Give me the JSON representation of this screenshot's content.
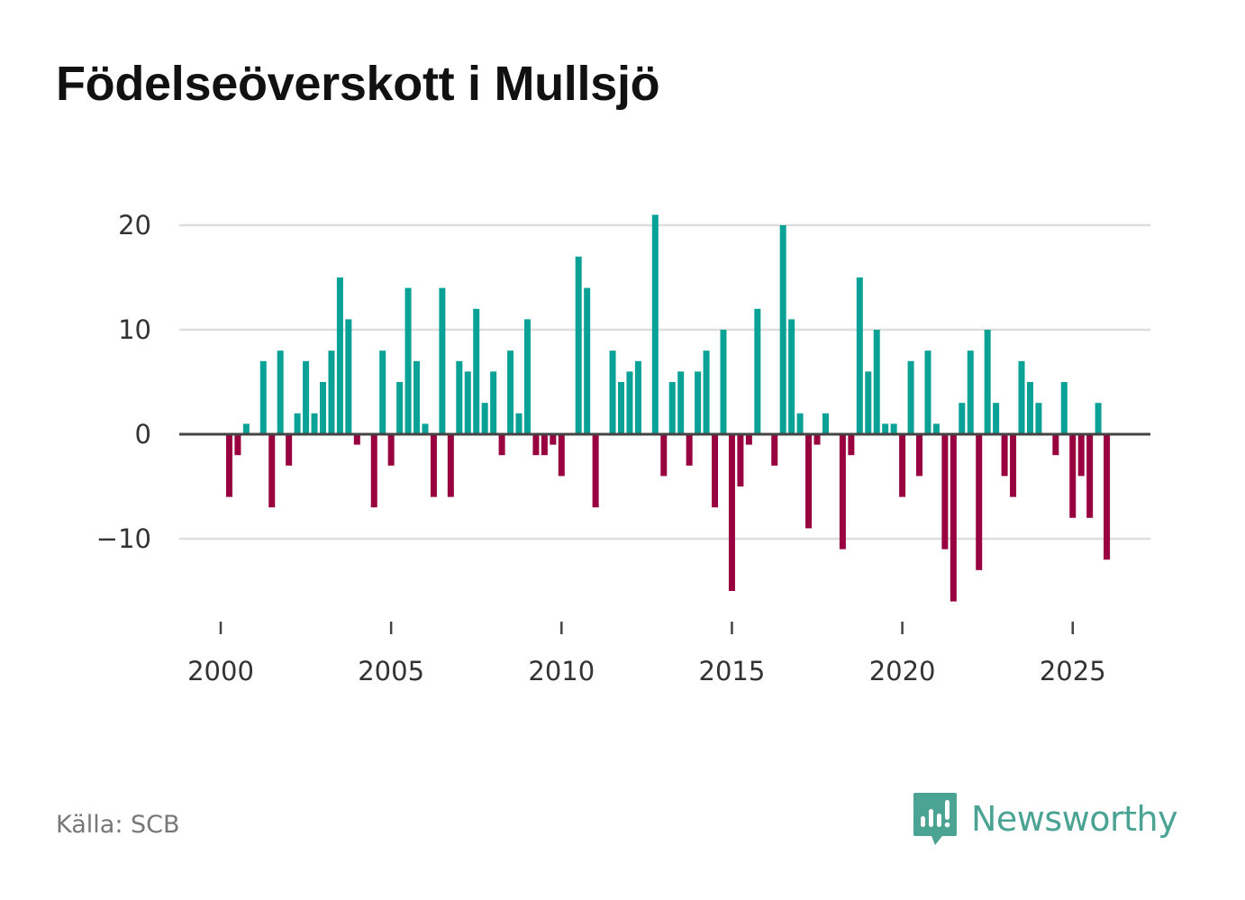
{
  "chart_data": {
    "type": "bar",
    "title": "Födelseöverskott i Mullsjö",
    "xlabel": "",
    "ylabel": "",
    "ylim": [
      -18,
      22
    ],
    "yticks": [
      20,
      10,
      0,
      -10
    ],
    "ytick_labels": [
      "20",
      "10",
      "0",
      "−10"
    ],
    "xticks": [
      2000,
      2005,
      2010,
      2015,
      2020,
      2025
    ],
    "xtick_labels": [
      "2000",
      "2005",
      "2010",
      "2015",
      "2020",
      "2025"
    ],
    "colors": {
      "positive": "#0aa197",
      "negative": "#98003f",
      "grid": "#dddddd",
      "zero": "#444444"
    },
    "x": [
      2000.25,
      2000.5,
      2000.75,
      2001.0,
      2001.25,
      2001.5,
      2001.75,
      2002.0,
      2002.25,
      2002.5,
      2002.75,
      2003.0,
      2003.25,
      2003.5,
      2003.75,
      2004.0,
      2004.25,
      2004.5,
      2004.75,
      2005.0,
      2005.25,
      2005.5,
      2005.75,
      2006.0,
      2006.25,
      2006.5,
      2006.75,
      2007.0,
      2007.25,
      2007.5,
      2007.75,
      2008.0,
      2008.25,
      2008.5,
      2008.75,
      2009.0,
      2009.25,
      2009.5,
      2009.75,
      2010.0,
      2010.25,
      2010.5,
      2010.75,
      2011.0,
      2011.25,
      2011.5,
      2011.75,
      2012.0,
      2012.25,
      2012.5,
      2012.75,
      2013.0,
      2013.25,
      2013.5,
      2013.75,
      2014.0,
      2014.25,
      2014.5,
      2014.75,
      2015.0,
      2015.25,
      2015.5,
      2015.75,
      2016.0,
      2016.25,
      2016.5,
      2016.75,
      2017.0,
      2017.25,
      2017.5,
      2017.75,
      2018.0,
      2018.25,
      2018.5,
      2018.75,
      2019.0,
      2019.25,
      2019.5,
      2019.75,
      2020.0,
      2020.25,
      2020.5,
      2020.75,
      2021.0,
      2021.25,
      2021.5,
      2021.75,
      2022.0,
      2022.25,
      2022.5,
      2022.75,
      2023.0,
      2023.25,
      2023.5,
      2023.75,
      2024.0,
      2024.25,
      2024.5,
      2024.75,
      2025.0,
      2025.25,
      2025.5,
      2025.75,
      2026.0
    ],
    "values": [
      -6,
      -2,
      1,
      0,
      7,
      -7,
      8,
      -3,
      2,
      7,
      2,
      5,
      8,
      15,
      11,
      -1,
      0,
      -7,
      8,
      -3,
      5,
      14,
      7,
      1,
      -6,
      14,
      -6,
      7,
      6,
      12,
      3,
      6,
      -2,
      8,
      2,
      11,
      -2,
      -2,
      -1,
      -4,
      0,
      17,
      14,
      -7,
      0,
      8,
      5,
      6,
      7,
      0,
      21,
      -4,
      5,
      6,
      -3,
      6,
      8,
      -7,
      10,
      -15,
      -5,
      -1,
      12,
      0,
      -3,
      20,
      11,
      2,
      -9,
      -1,
      2,
      0,
      -11,
      -2,
      15,
      6,
      10,
      1,
      1,
      -6,
      7,
      -4,
      8,
      1,
      -11,
      -16,
      3,
      8,
      -13,
      10,
      3,
      -4,
      -6,
      7,
      5,
      3,
      0,
      -2,
      5,
      -8,
      -4,
      -8,
      3,
      -12
    ]
  },
  "footer": {
    "source": "Källa: SCB",
    "brand": "Newsworthy"
  }
}
